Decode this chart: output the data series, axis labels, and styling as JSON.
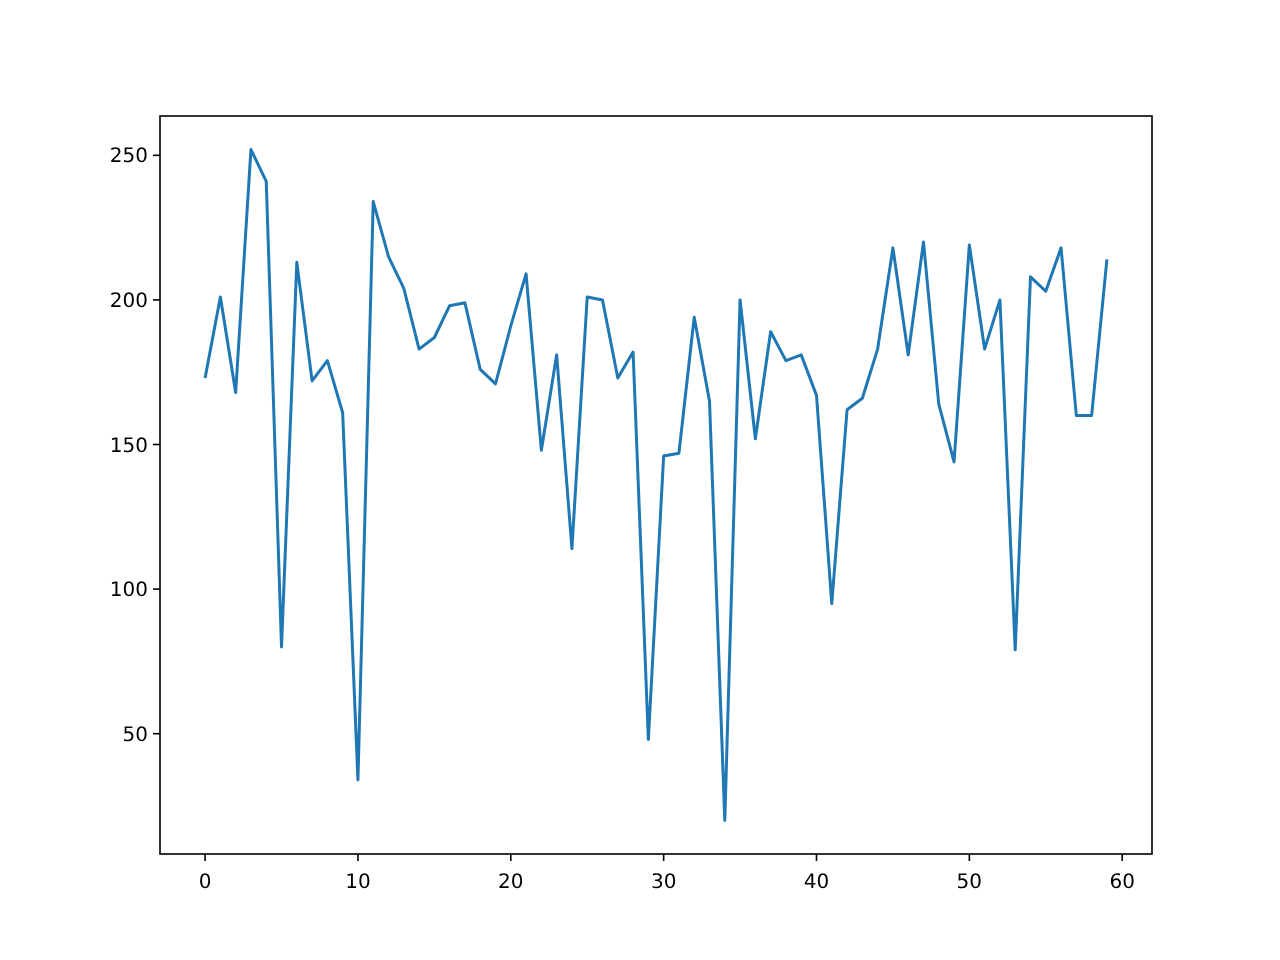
{
  "chart_data": {
    "type": "line",
    "x": [
      0,
      1,
      2,
      3,
      4,
      5,
      6,
      7,
      8,
      9,
      10,
      11,
      12,
      13,
      14,
      15,
      16,
      17,
      18,
      19,
      20,
      21,
      22,
      23,
      24,
      25,
      26,
      27,
      28,
      29,
      30,
      31,
      32,
      33,
      34,
      35,
      36,
      37,
      38,
      39,
      40,
      41,
      42,
      43,
      44,
      45,
      46,
      47,
      48,
      49,
      50,
      51,
      52,
      53,
      54,
      55,
      56,
      57,
      58,
      59
    ],
    "series": [
      {
        "color": "#1f77b4",
        "values": [
          173,
          201,
          168,
          252,
          241,
          80,
          213,
          172,
          179,
          161,
          34,
          234,
          215,
          204,
          183,
          187,
          198,
          199,
          176,
          171,
          191,
          209,
          148,
          181,
          114,
          201,
          200,
          173,
          182,
          48,
          146,
          147,
          194,
          165,
          20,
          200,
          152,
          189,
          179,
          181,
          167,
          95,
          162,
          166,
          183,
          218,
          181,
          220,
          164,
          144,
          219,
          183,
          200,
          79,
          208,
          203,
          218,
          160,
          160,
          214
        ]
      }
    ],
    "xlim": [
      -2.95,
      61.95
    ],
    "ylim": [
      8.4,
      263.6
    ],
    "xticks": [
      0,
      10,
      20,
      30,
      40,
      50,
      60
    ],
    "yticks": [
      50,
      100,
      150,
      200,
      250
    ]
  }
}
